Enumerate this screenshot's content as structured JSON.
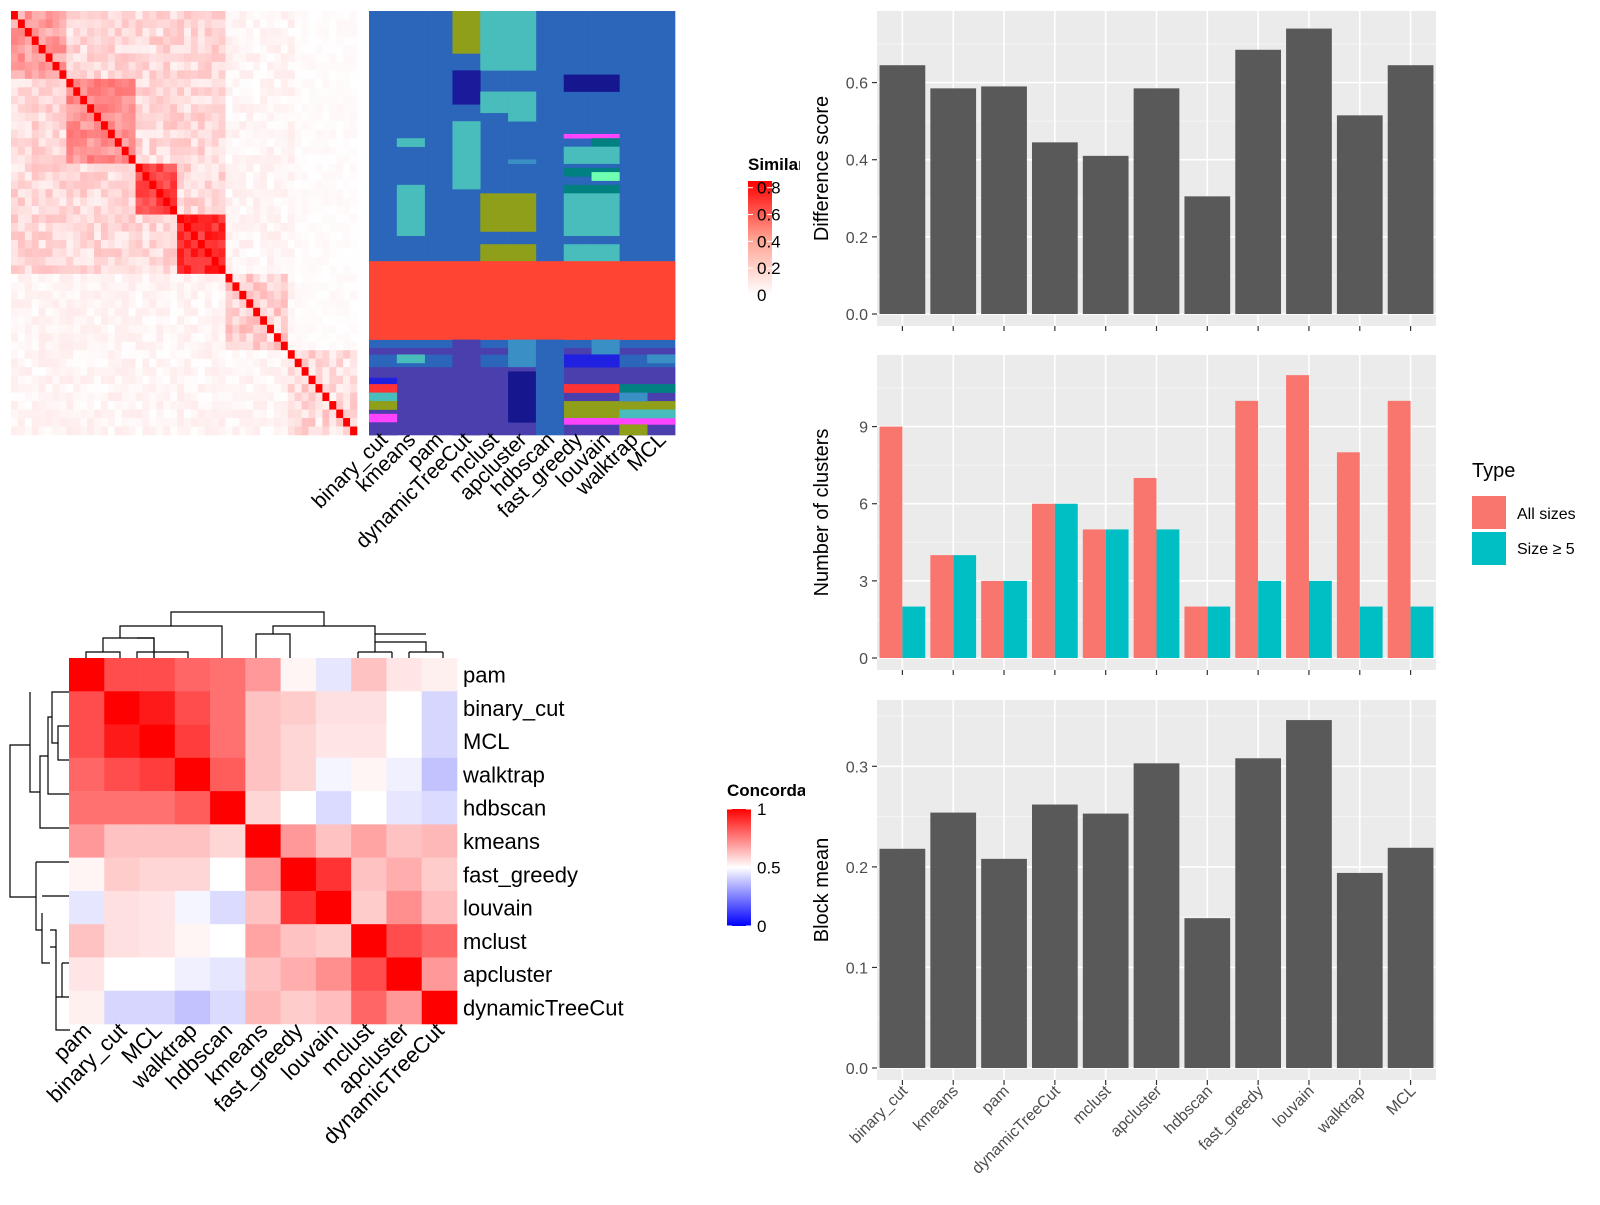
{
  "methods": [
    "binary_cut",
    "kmeans",
    "pam",
    "dynamicTreeCut",
    "mclust",
    "apcluster",
    "hdbscan",
    "fast_greedy",
    "louvain",
    "walktrap",
    "MCL"
  ],
  "similarity_legend": {
    "title": "Similarity",
    "ticks": [
      "0.8",
      "0.6",
      "0.4",
      "0.2",
      "0"
    ],
    "tick_values": [
      0.8,
      0.6,
      0.4,
      0.2,
      0
    ]
  },
  "concordance_legend": {
    "title": "Concordance",
    "ticks": [
      "1",
      "0.5",
      "0"
    ],
    "tick_values": [
      1,
      0.5,
      0
    ]
  },
  "type_legend": {
    "title": "Type",
    "items": [
      "All sizes",
      "Size ≥ 5"
    ],
    "colors": [
      "#F8766D",
      "#00BFC4"
    ]
  },
  "bar_color": "#595959",
  "heatmap_colors": {
    "high": "#ff0000",
    "mid": "#ffffff",
    "low": "#0000ff"
  },
  "concordance": {
    "order": [
      "pam",
      "binary_cut",
      "MCL",
      "walktrap",
      "hdbscan",
      "kmeans",
      "fast_greedy",
      "louvain",
      "mclust",
      "apcluster",
      "dynamicTreeCut"
    ],
    "matrix": [
      [
        1.0,
        0.85,
        0.85,
        0.8,
        0.78,
        0.7,
        0.52,
        0.45,
        0.62,
        0.55,
        0.53
      ],
      [
        0.85,
        1.0,
        0.95,
        0.85,
        0.78,
        0.62,
        0.6,
        0.56,
        0.56,
        0.5,
        0.42
      ],
      [
        0.85,
        0.95,
        1.0,
        0.88,
        0.78,
        0.62,
        0.58,
        0.55,
        0.55,
        0.5,
        0.42
      ],
      [
        0.8,
        0.85,
        0.88,
        1.0,
        0.82,
        0.62,
        0.58,
        0.48,
        0.52,
        0.47,
        0.38
      ],
      [
        0.78,
        0.78,
        0.78,
        0.82,
        1.0,
        0.58,
        0.5,
        0.43,
        0.5,
        0.45,
        0.43
      ],
      [
        0.7,
        0.62,
        0.62,
        0.62,
        0.58,
        1.0,
        0.7,
        0.62,
        0.68,
        0.62,
        0.64
      ],
      [
        0.52,
        0.6,
        0.58,
        0.58,
        0.5,
        0.7,
        1.0,
        0.9,
        0.62,
        0.66,
        0.6
      ],
      [
        0.45,
        0.56,
        0.55,
        0.48,
        0.43,
        0.62,
        0.9,
        1.0,
        0.6,
        0.72,
        0.63
      ],
      [
        0.62,
        0.56,
        0.55,
        0.52,
        0.5,
        0.68,
        0.62,
        0.6,
        1.0,
        0.85,
        0.8
      ],
      [
        0.55,
        0.5,
        0.5,
        0.47,
        0.45,
        0.62,
        0.66,
        0.72,
        0.85,
        1.0,
        0.7
      ],
      [
        0.53,
        0.42,
        0.42,
        0.38,
        0.43,
        0.64,
        0.6,
        0.63,
        0.8,
        0.7,
        1.0
      ]
    ]
  },
  "chart_data": [
    {
      "type": "bar",
      "categories": [
        "binary_cut",
        "kmeans",
        "pam",
        "dynamicTreeCut",
        "mclust",
        "apcluster",
        "hdbscan",
        "fast_greedy",
        "louvain",
        "walktrap",
        "MCL"
      ],
      "values": [
        0.645,
        0.585,
        0.59,
        0.445,
        0.41,
        0.585,
        0.305,
        0.685,
        0.74,
        0.515,
        0.645
      ],
      "ylabel": "Difference score",
      "ylim": [
        0,
        0.77
      ],
      "yticks": [
        0.0,
        0.2,
        0.4,
        0.6
      ],
      "ytick_labels": [
        "0.0",
        "0.2",
        "0.4",
        "0.6"
      ],
      "grid": true
    },
    {
      "type": "bar",
      "categories": [
        "binary_cut",
        "kmeans",
        "pam",
        "dynamicTreeCut",
        "mclust",
        "apcluster",
        "hdbscan",
        "fast_greedy",
        "louvain",
        "walktrap",
        "MCL"
      ],
      "series": [
        {
          "name": "All sizes",
          "values": [
            9,
            4,
            3,
            6,
            5,
            7,
            2,
            10,
            11,
            8,
            10
          ]
        },
        {
          "name": "Size ≥ 5",
          "values": [
            2,
            4,
            3,
            6,
            5,
            5,
            2,
            3,
            3,
            2,
            2
          ]
        }
      ],
      "ylabel": "Number of clusters",
      "ylim": [
        0,
        11.55
      ],
      "yticks": [
        0,
        3,
        6,
        9
      ],
      "ytick_labels": [
        "0",
        "3",
        "6",
        "9"
      ],
      "legend": "right",
      "grid": true
    },
    {
      "type": "bar",
      "categories": [
        "binary_cut",
        "kmeans",
        "pam",
        "dynamicTreeCut",
        "mclust",
        "apcluster",
        "hdbscan",
        "fast_greedy",
        "louvain",
        "walktrap",
        "MCL"
      ],
      "values": [
        0.218,
        0.254,
        0.208,
        0.262,
        0.253,
        0.303,
        0.149,
        0.308,
        0.346,
        0.194,
        0.219
      ],
      "ylabel": "Block mean",
      "ylim": [
        0,
        0.36
      ],
      "yticks": [
        0.0,
        0.1,
        0.2,
        0.3
      ],
      "ytick_labels": [
        "0.0",
        "0.1",
        "0.2",
        "0.3"
      ],
      "grid": true
    }
  ]
}
